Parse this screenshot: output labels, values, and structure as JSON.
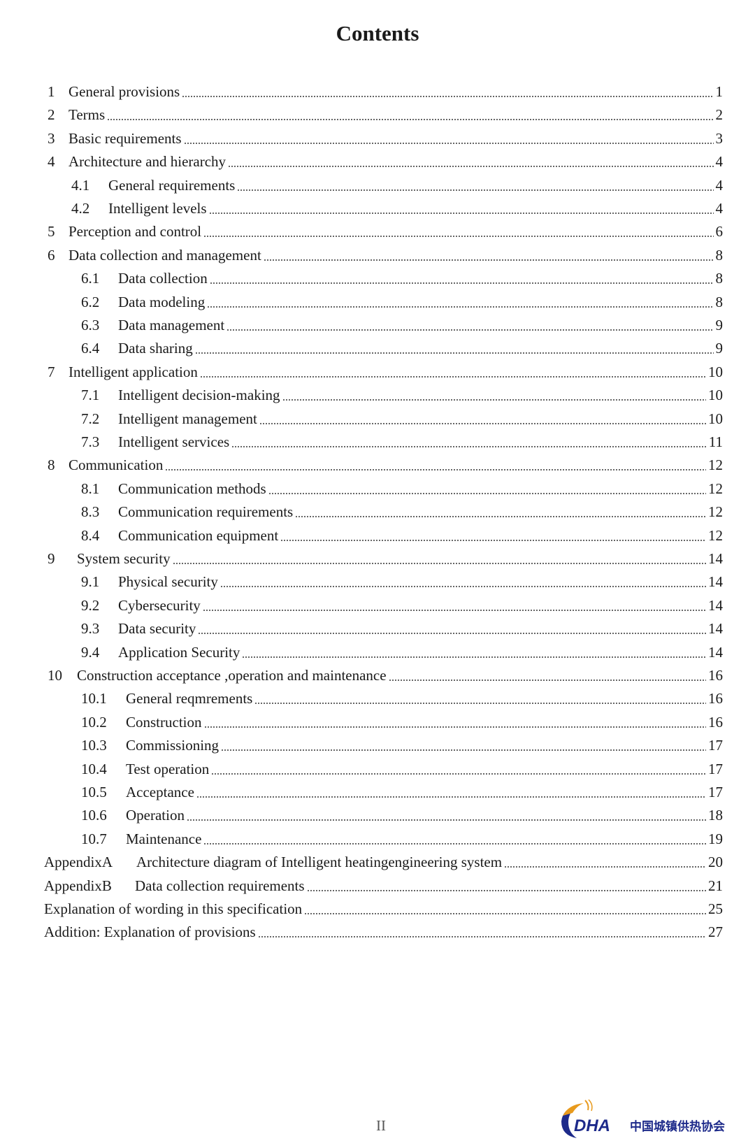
{
  "title": "Contents",
  "entries": [
    {
      "num": "1",
      "text": "General provisions",
      "page": "1",
      "level": 0
    },
    {
      "num": "2",
      "text": "Terms",
      "page": "2",
      "level": 0
    },
    {
      "num": "3",
      "text": "Basic requirements",
      "page": "3",
      "level": 0
    },
    {
      "num": "4",
      "text": "Architecture and hierarchy",
      "page": "4",
      "level": 0
    },
    {
      "num": "4.1",
      "text": "General requirements",
      "page": "4",
      "level": 1
    },
    {
      "num": "4.2",
      "text": "Intelligent levels",
      "page": "4",
      "level": 1
    },
    {
      "num": "5",
      "text": "Perception and control",
      "page": "6",
      "level": 0
    },
    {
      "num": "6",
      "text": "Data collection and management",
      "page": "8",
      "level": 0
    },
    {
      "num": "6.1",
      "text": "Data collection",
      "page": "8",
      "level": 2
    },
    {
      "num": "6.2",
      "text": "Data modeling",
      "page": "8",
      "level": 2
    },
    {
      "num": "6.3",
      "text": "Data management",
      "page": "9",
      "level": 2
    },
    {
      "num": "6.4",
      "text": "Data sharing",
      "page": "9",
      "level": 2
    },
    {
      "num": "7",
      "text": "Intelligent application",
      "page": "10",
      "level": 0
    },
    {
      "num": "7.1",
      "text": "Intelligent decision-making",
      "page": "10",
      "level": 2
    },
    {
      "num": "7.2",
      "text": "Intelligent management",
      "page": "10",
      "level": 2
    },
    {
      "num": "7.3",
      "text": "Intelligent services",
      "page": "11",
      "level": 2
    },
    {
      "num": "8",
      "text": "Communication",
      "page": "12",
      "level": 0
    },
    {
      "num": "8.1",
      "text": "Communication methods",
      "page": "12",
      "level": 2
    },
    {
      "num": "8.3",
      "text": "Communication requirements",
      "page": "12",
      "level": 2
    },
    {
      "num": "8.4",
      "text": "Communication equipment",
      "page": "12",
      "level": 2
    },
    {
      "num": "9",
      "text": "System security",
      "page": "14",
      "level": 3
    },
    {
      "num": "9.1",
      "text": "Physical security",
      "page": "14",
      "level": 2
    },
    {
      "num": "9.2",
      "text": "Cybersecurity",
      "page": "14",
      "level": 2
    },
    {
      "num": "9.3",
      "text": "Data security",
      "page": "14",
      "level": 2
    },
    {
      "num": "9.4",
      "text": "Application Security",
      "page": "14",
      "level": 2
    },
    {
      "num": "10",
      "text": "Construction acceptance ,operation and maintenance",
      "page": "16",
      "level": 3
    },
    {
      "num": "10.1",
      "text": "General reqmrements",
      "page": "16",
      "level": 4
    },
    {
      "num": "10.2",
      "text": "Construction",
      "page": "16",
      "level": 4
    },
    {
      "num": "10.3",
      "text": "Commissioning",
      "page": "17",
      "level": 4
    },
    {
      "num": "10.4",
      "text": "Test operation",
      "page": "17",
      "level": 4
    },
    {
      "num": "10.5",
      "text": "Acceptance",
      "page": "17",
      "level": 4
    },
    {
      "num": "10.6",
      "text": "Operation",
      "page": "18",
      "level": 4
    },
    {
      "num": "10.7",
      "text": "Maintenance",
      "page": "19",
      "level": 4
    },
    {
      "num": "AppendixA",
      "text": "Architecture diagram of Intelligent heatingengineering system",
      "page": "20",
      "level": 5
    },
    {
      "num": "AppendixB",
      "text": "Data collection requirements",
      "page": "21",
      "level": 5
    },
    {
      "num": "",
      "text": "Explanation of wording in this specification",
      "page": "25",
      "level": 6
    },
    {
      "num": "",
      "text": "Addition: Explanation of provisions",
      "page": "27",
      "level": 6
    }
  ],
  "footer": {
    "page_number": "II",
    "logo_text": "CDHA",
    "logo_chinese": "中国城镇供热协会",
    "logo_colors": {
      "blue": "#1d2a8a",
      "orange": "#e89a1c"
    }
  }
}
